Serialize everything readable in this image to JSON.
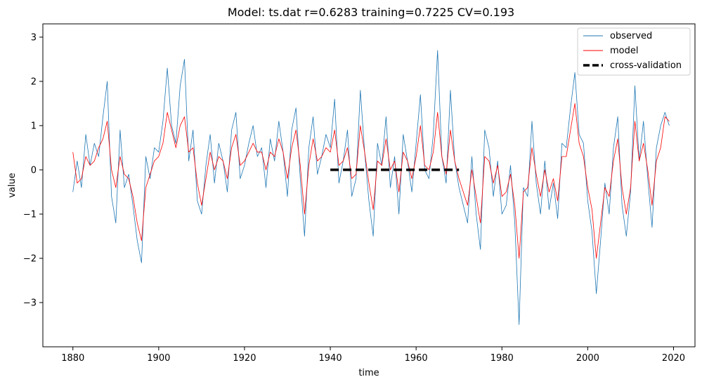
{
  "chart_data": {
    "type": "line",
    "title": "Model: ts.dat  r=0.6283  training=0.7225  CV=0.193",
    "xlabel": "time",
    "ylabel": "value",
    "xlim": [
      1873,
      2025
    ],
    "ylim": [
      -4.0,
      3.3
    ],
    "x_ticks": [
      1880,
      1900,
      1920,
      1940,
      1960,
      1980,
      2000,
      2020
    ],
    "y_ticks": [
      -3,
      -2,
      -1,
      0,
      1,
      2,
      3
    ],
    "x_tick_labels": [
      "1880",
      "1900",
      "1920",
      "1940",
      "1960",
      "1980",
      "2000",
      "2020"
    ],
    "y_tick_labels": [
      "−3",
      "−2",
      "−1",
      "0",
      "1",
      "2",
      "3"
    ],
    "legend": {
      "position": "top-right",
      "entries": [
        "observed",
        "model",
        "cross-validation"
      ]
    },
    "series": [
      {
        "name": "observed",
        "color": "#1f77b4",
        "x": [
          1880,
          1881,
          1882,
          1883,
          1884,
          1885,
          1886,
          1887,
          1888,
          1889,
          1890,
          1891,
          1892,
          1893,
          1894,
          1895,
          1896,
          1897,
          1898,
          1899,
          1900,
          1901,
          1902,
          1903,
          1904,
          1905,
          1906,
          1907,
          1908,
          1909,
          1910,
          1911,
          1912,
          1913,
          1914,
          1915,
          1916,
          1917,
          1918,
          1919,
          1920,
          1921,
          1922,
          1923,
          1924,
          1925,
          1926,
          1927,
          1928,
          1929,
          1930,
          1931,
          1932,
          1933,
          1934,
          1935,
          1936,
          1937,
          1938,
          1939,
          1940,
          1941,
          1942,
          1943,
          1944,
          1945,
          1946,
          1947,
          1948,
          1949,
          1950,
          1951,
          1952,
          1953,
          1954,
          1955,
          1956,
          1957,
          1958,
          1959,
          1960,
          1961,
          1962,
          1963,
          1964,
          1965,
          1966,
          1967,
          1968,
          1969,
          1970,
          1971,
          1972,
          1973,
          1974,
          1975,
          1976,
          1977,
          1978,
          1979,
          1980,
          1981,
          1982,
          1983,
          1984,
          1985,
          1986,
          1987,
          1988,
          1989,
          1990,
          1991,
          1992,
          1993,
          1994,
          1995,
          1996,
          1997,
          1998,
          1999,
          2000,
          2001,
          2002,
          2003,
          2004,
          2005,
          2006,
          2007,
          2008,
          2009,
          2010,
          2011,
          2012,
          2013,
          2014,
          2015,
          2016,
          2017,
          2018,
          2019
        ],
        "values": [
          -0.5,
          0.2,
          -0.4,
          0.8,
          0.1,
          0.6,
          0.3,
          1.2,
          2.0,
          -0.6,
          -1.2,
          0.9,
          -0.4,
          -0.1,
          -0.8,
          -1.6,
          -2.1,
          0.3,
          -0.2,
          0.5,
          0.4,
          1.1,
          2.3,
          1.0,
          0.6,
          1.9,
          2.5,
          0.2,
          0.9,
          -0.7,
          -1.0,
          0.1,
          0.8,
          -0.3,
          0.6,
          0.2,
          -0.5,
          0.9,
          1.3,
          -0.2,
          0.1,
          0.6,
          1.0,
          0.3,
          0.5,
          -0.4,
          0.7,
          0.2,
          1.1,
          0.4,
          -0.6,
          0.9,
          1.4,
          -0.2,
          -1.5,
          0.5,
          1.2,
          -0.1,
          0.3,
          0.8,
          0.5,
          1.6,
          -0.3,
          0.2,
          0.9,
          -0.6,
          -0.2,
          1.8,
          0.4,
          -0.7,
          -1.5,
          0.6,
          0.1,
          1.2,
          -0.4,
          0.3,
          -1.0,
          0.8,
          0.2,
          -0.5,
          0.6,
          1.7,
          0.0,
          -0.2,
          0.8,
          2.7,
          0.3,
          -0.3,
          1.8,
          0.2,
          -0.4,
          -0.8,
          -1.2,
          0.3,
          -1.0,
          -1.8,
          0.9,
          0.5,
          -0.6,
          0.2,
          -1.0,
          -0.8,
          0.1,
          -1.2,
          -3.5,
          -0.4,
          -0.6,
          1.1,
          -0.3,
          -1.0,
          0.2,
          -0.9,
          -0.3,
          -1.1,
          0.6,
          0.5,
          1.4,
          2.2,
          0.8,
          0.6,
          -0.7,
          -1.4,
          -2.8,
          -1.6,
          -0.3,
          -1.0,
          0.5,
          1.2,
          -0.8,
          -1.5,
          -0.5,
          1.9,
          0.2,
          1.1,
          -0.2,
          -1.3,
          0.5,
          1.0,
          1.3,
          1.0
        ]
      },
      {
        "name": "model",
        "color": "#ff0000",
        "x": [
          1880,
          1881,
          1882,
          1883,
          1884,
          1885,
          1886,
          1887,
          1888,
          1889,
          1890,
          1891,
          1892,
          1893,
          1894,
          1895,
          1896,
          1897,
          1898,
          1899,
          1900,
          1901,
          1902,
          1903,
          1904,
          1905,
          1906,
          1907,
          1908,
          1909,
          1910,
          1911,
          1912,
          1913,
          1914,
          1915,
          1916,
          1917,
          1918,
          1919,
          1920,
          1921,
          1922,
          1923,
          1924,
          1925,
          1926,
          1927,
          1928,
          1929,
          1930,
          1931,
          1932,
          1933,
          1934,
          1935,
          1936,
          1937,
          1938,
          1939,
          1940,
          1941,
          1942,
          1943,
          1944,
          1945,
          1946,
          1947,
          1948,
          1949,
          1950,
          1951,
          1952,
          1953,
          1954,
          1955,
          1956,
          1957,
          1958,
          1959,
          1960,
          1961,
          1962,
          1963,
          1964,
          1965,
          1966,
          1967,
          1968,
          1969,
          1970,
          1971,
          1972,
          1973,
          1974,
          1975,
          1976,
          1977,
          1978,
          1979,
          1980,
          1981,
          1982,
          1983,
          1984,
          1985,
          1986,
          1987,
          1988,
          1989,
          1990,
          1991,
          1992,
          1993,
          1994,
          1995,
          1996,
          1997,
          1998,
          1999,
          2000,
          2001,
          2002,
          2003,
          2004,
          2005,
          2006,
          2007,
          2008,
          2009,
          2010,
          2011,
          2012,
          2013,
          2014,
          2015,
          2016,
          2017,
          2018,
          2019
        ],
        "values": [
          0.4,
          -0.3,
          -0.2,
          0.3,
          0.1,
          0.2,
          0.5,
          0.7,
          1.1,
          0.0,
          -0.4,
          0.3,
          -0.1,
          -0.2,
          -0.6,
          -1.2,
          -1.6,
          -0.4,
          -0.1,
          0.2,
          0.3,
          0.6,
          1.3,
          0.9,
          0.5,
          1.0,
          1.2,
          0.4,
          0.5,
          -0.3,
          -0.8,
          -0.2,
          0.4,
          0.0,
          0.3,
          0.2,
          -0.2,
          0.5,
          0.8,
          0.1,
          0.2,
          0.4,
          0.6,
          0.4,
          0.4,
          0.0,
          0.4,
          0.3,
          0.7,
          0.4,
          -0.2,
          0.5,
          0.9,
          0.1,
          -1.0,
          0.1,
          0.7,
          0.2,
          0.3,
          0.5,
          0.4,
          0.9,
          0.1,
          0.2,
          0.5,
          -0.2,
          -0.1,
          1.0,
          0.4,
          -0.3,
          -0.9,
          0.2,
          0.1,
          0.7,
          0.0,
          0.2,
          -0.5,
          0.4,
          0.2,
          -0.2,
          0.3,
          1.0,
          0.1,
          0.0,
          0.4,
          1.3,
          0.3,
          -0.1,
          0.9,
          0.2,
          -0.2,
          -0.5,
          -0.8,
          0.0,
          -0.6,
          -1.2,
          0.3,
          0.2,
          -0.3,
          0.1,
          -0.6,
          -0.5,
          -0.1,
          -0.8,
          -2.0,
          -0.5,
          -0.4,
          0.5,
          -0.1,
          -0.6,
          0.0,
          -0.5,
          -0.2,
          -0.7,
          0.3,
          0.3,
          0.9,
          1.5,
          0.6,
          0.3,
          -0.4,
          -0.9,
          -2.0,
          -1.2,
          -0.4,
          -0.6,
          0.2,
          0.7,
          -0.4,
          -1.0,
          -0.4,
          1.1,
          0.2,
          0.6,
          0.0,
          -0.8,
          0.2,
          0.5,
          1.2,
          1.1
        ]
      },
      {
        "name": "cross-validation",
        "color": "#000000",
        "style": "dashed",
        "x": [
          1940,
          1970
        ],
        "values": [
          0,
          0
        ]
      }
    ]
  }
}
